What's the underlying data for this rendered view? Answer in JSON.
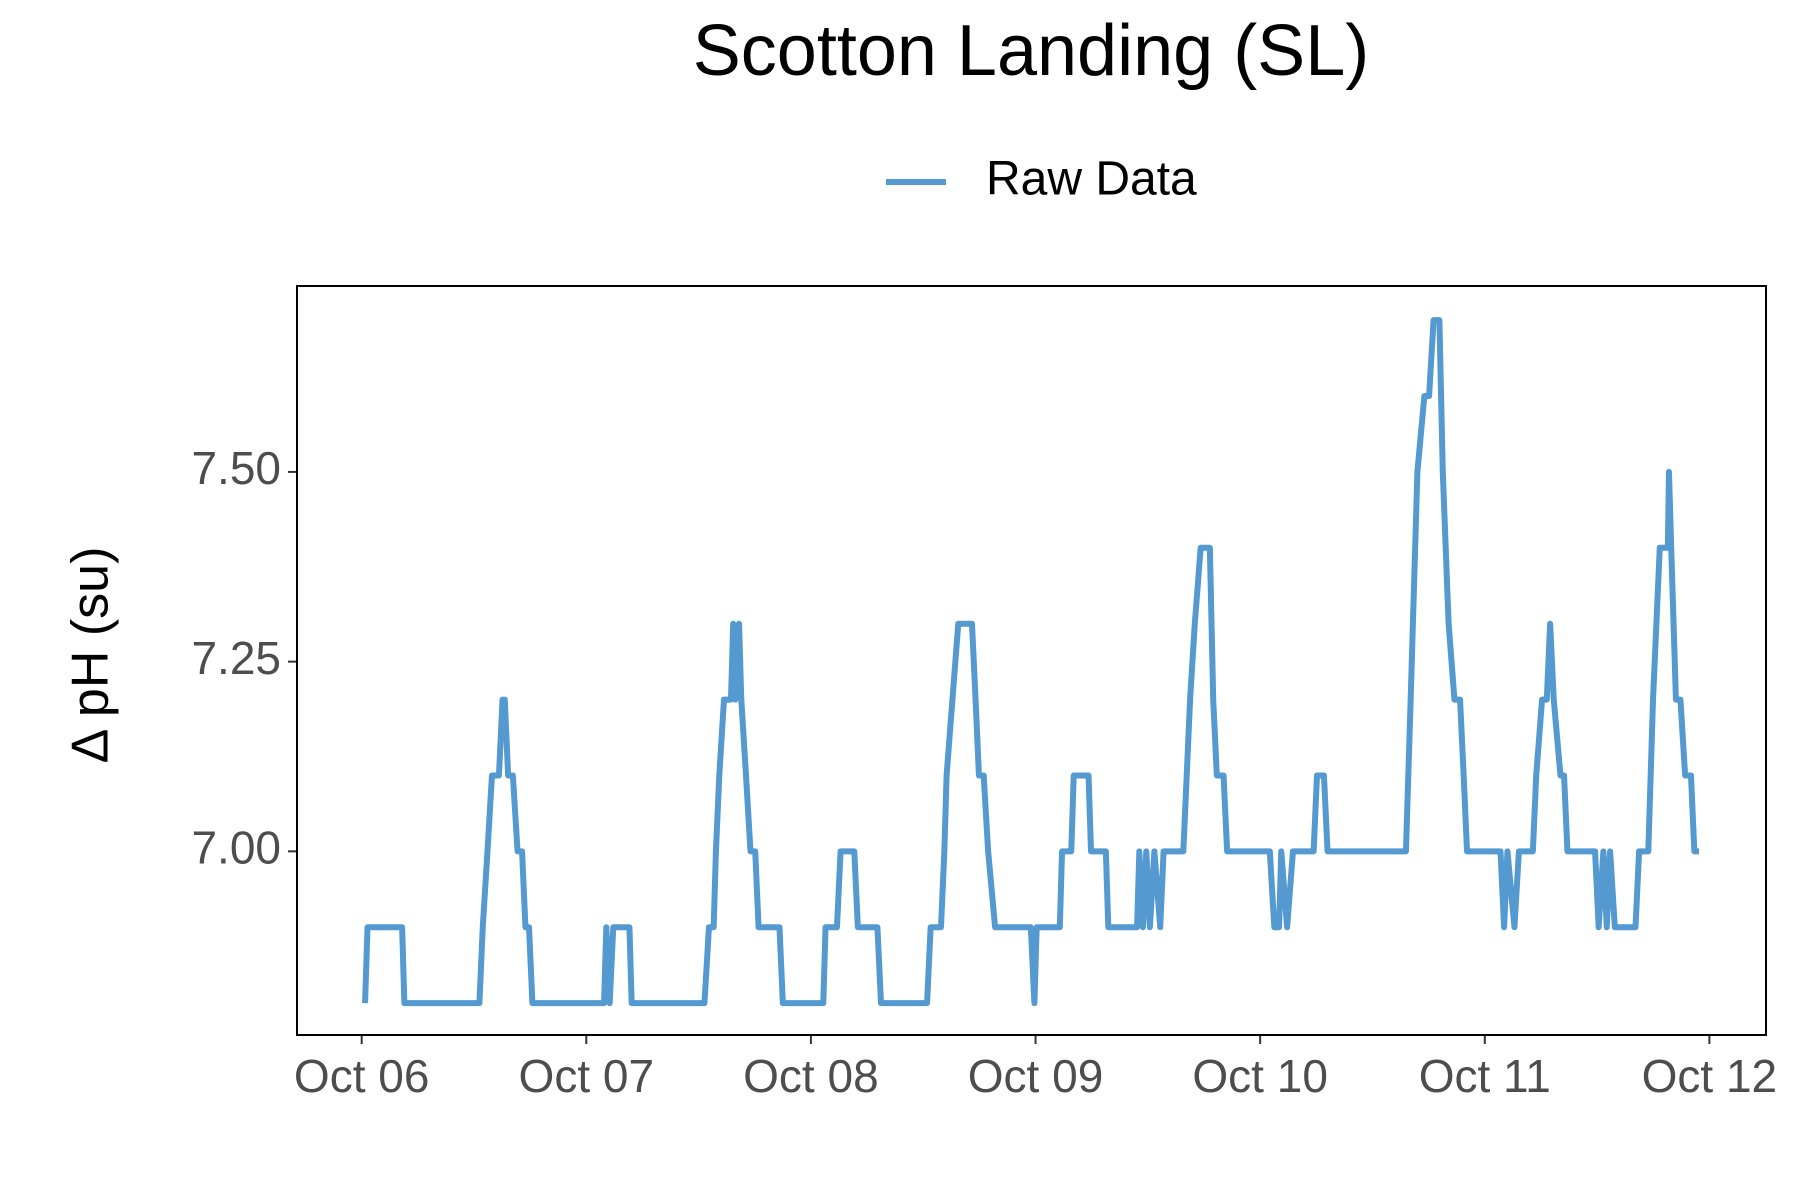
{
  "chart_data": {
    "type": "line",
    "title": "Scotton Landing (SL)",
    "ylabel": "Δ pH (su)",
    "x": [
      6.015,
      6.026,
      6.18,
      6.19,
      6.524,
      6.539,
      6.56,
      6.58,
      6.611,
      6.627,
      6.637,
      6.652,
      6.673,
      6.694,
      6.714,
      6.729,
      6.745,
      6.76,
      7.079,
      7.089,
      7.104,
      7.12,
      7.192,
      7.202,
      7.526,
      7.546,
      7.567,
      7.577,
      7.592,
      7.613,
      7.644,
      7.654,
      7.664,
      7.68,
      7.69,
      7.711,
      7.731,
      7.752,
      7.767,
      7.86,
      7.875,
      8.055,
      8.065,
      8.116,
      8.132,
      8.193,
      8.209,
      8.296,
      8.312,
      8.517,
      8.533,
      8.579,
      8.594,
      8.604,
      8.63,
      8.656,
      8.717,
      8.733,
      8.748,
      8.769,
      8.789,
      8.82,
      8.979,
      8.995,
      9.005,
      9.108,
      9.118,
      9.159,
      9.17,
      9.236,
      9.247,
      9.313,
      9.324,
      9.452,
      9.462,
      9.478,
      9.493,
      9.509,
      9.529,
      9.555,
      9.57,
      9.658,
      9.673,
      9.688,
      9.709,
      9.735,
      9.776,
      9.791,
      9.807,
      9.837,
      9.853,
      10.043,
      10.063,
      10.084,
      10.094,
      10.12,
      10.146,
      10.238,
      10.253,
      10.284,
      10.3,
      10.649,
      10.67,
      10.7,
      10.731,
      10.752,
      10.772,
      10.798,
      10.813,
      10.839,
      10.865,
      10.89,
      10.906,
      10.921,
      11.07,
      11.086,
      11.101,
      11.132,
      11.152,
      11.214,
      11.229,
      11.255,
      11.276,
      11.291,
      11.307,
      11.337,
      11.353,
      11.368,
      11.491,
      11.507,
      11.528,
      11.543,
      11.558,
      11.579,
      11.671,
      11.687,
      11.728,
      11.749,
      11.764,
      11.779,
      11.815,
      11.82,
      11.83,
      11.851,
      11.871,
      11.892,
      11.918,
      11.933,
      11.954
    ],
    "series": [
      {
        "name": "Raw Data",
        "color": "#5499d0",
        "values": [
          6.8,
          6.9,
          6.9,
          6.8,
          6.8,
          6.9,
          7.0,
          7.1,
          7.1,
          7.2,
          7.2,
          7.1,
          7.1,
          7.0,
          7.0,
          6.9,
          6.9,
          6.8,
          6.8,
          6.9,
          6.8,
          6.9,
          6.9,
          6.8,
          6.8,
          6.9,
          6.9,
          7.0,
          7.1,
          7.2,
          7.2,
          7.3,
          7.2,
          7.3,
          7.2,
          7.1,
          7.0,
          7.0,
          6.9,
          6.9,
          6.8,
          6.8,
          6.9,
          6.9,
          7.0,
          7.0,
          6.9,
          6.9,
          6.8,
          6.8,
          6.9,
          6.9,
          7.0,
          7.1,
          7.2,
          7.3,
          7.3,
          7.2,
          7.1,
          7.1,
          7.0,
          6.9,
          6.9,
          6.8,
          6.9,
          6.9,
          7.0,
          7.0,
          7.1,
          7.1,
          7.0,
          7.0,
          6.9,
          6.9,
          7.0,
          6.9,
          7.0,
          6.9,
          7.0,
          6.9,
          7.0,
          7.0,
          7.1,
          7.2,
          7.3,
          7.4,
          7.4,
          7.2,
          7.1,
          7.1,
          7.0,
          7.0,
          6.9,
          6.9,
          7.0,
          6.9,
          7.0,
          7.0,
          7.1,
          7.1,
          7.0,
          7.0,
          7.2,
          7.5,
          7.6,
          7.6,
          7.7,
          7.7,
          7.5,
          7.3,
          7.2,
          7.2,
          7.1,
          7.0,
          7.0,
          6.9,
          7.0,
          6.9,
          7.0,
          7.0,
          7.1,
          7.2,
          7.2,
          7.3,
          7.2,
          7.1,
          7.1,
          7.0,
          7.0,
          6.9,
          7.0,
          6.9,
          7.0,
          6.9,
          6.9,
          7.0,
          7.0,
          7.2,
          7.3,
          7.4,
          7.4,
          7.5,
          7.4,
          7.2,
          7.2,
          7.1,
          7.1,
          7.0,
          7.0
        ]
      }
    ],
    "xlim": [
      5.712,
      12.252
    ],
    "xticks": [
      {
        "value": 6,
        "label": "Oct 06"
      },
      {
        "value": 7,
        "label": "Oct 07"
      },
      {
        "value": 8,
        "label": "Oct 08"
      },
      {
        "value": 9,
        "label": "Oct 09"
      },
      {
        "value": 10,
        "label": "Oct 10"
      },
      {
        "value": 11,
        "label": "Oct 11"
      },
      {
        "value": 12,
        "label": "Oct 12"
      }
    ],
    "ylim": [
      6.758,
      7.745
    ],
    "yticks": [
      {
        "value": 7.0,
        "label": "7.00"
      },
      7.25,
      {
        "value": 7.5,
        "label": "7.50"
      }
    ],
    "grid": false,
    "legend": "top"
  }
}
